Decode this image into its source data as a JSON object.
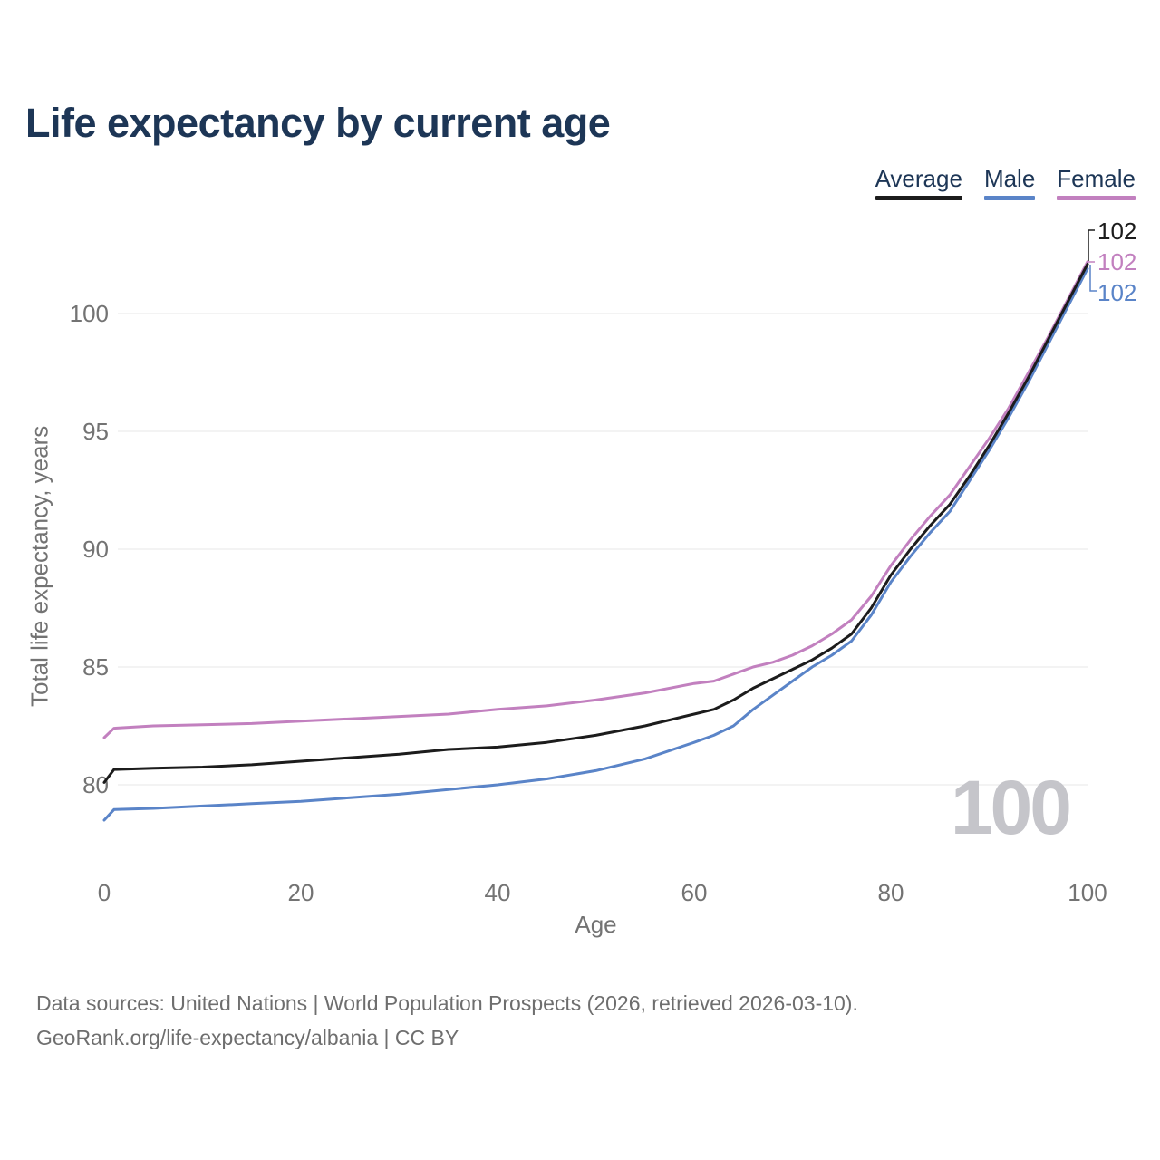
{
  "title": "Life expectancy by current age",
  "chart_data": {
    "type": "line",
    "title": "Life expectancy by current age",
    "xlabel": "Age",
    "ylabel": "Total life expectancy, years",
    "x_ticks": [
      0,
      20,
      40,
      60,
      80,
      100
    ],
    "y_ticks": [
      80,
      85,
      90,
      95,
      100
    ],
    "xlim": [
      0,
      100
    ],
    "ylim": [
      78,
      103
    ],
    "grid": "horizontal-only",
    "legend_position": "top-right",
    "ages": [
      0,
      1,
      5,
      10,
      15,
      20,
      25,
      30,
      35,
      40,
      45,
      50,
      55,
      60,
      62,
      64,
      66,
      68,
      70,
      72,
      74,
      76,
      78,
      80,
      82,
      84,
      86,
      88,
      90,
      92,
      94,
      96,
      98,
      100
    ],
    "series": [
      {
        "name": "Average",
        "color": "#1c1c1c",
        "values": [
          80.1,
          80.65,
          80.7,
          80.75,
          80.85,
          81.0,
          81.15,
          81.3,
          81.5,
          81.6,
          81.8,
          82.1,
          82.5,
          83.0,
          83.2,
          83.6,
          84.1,
          84.5,
          84.9,
          85.3,
          85.8,
          86.4,
          87.5,
          88.9,
          90.0,
          91.0,
          91.9,
          93.1,
          94.4,
          95.8,
          97.3,
          98.9,
          100.5,
          102.1
        ]
      },
      {
        "name": "Male",
        "color": "#5a84c8",
        "values": [
          78.5,
          78.95,
          79.0,
          79.1,
          79.2,
          79.3,
          79.45,
          79.6,
          79.8,
          80.0,
          80.25,
          80.6,
          81.1,
          81.8,
          82.1,
          82.5,
          83.2,
          83.8,
          84.4,
          85.0,
          85.5,
          86.1,
          87.2,
          88.6,
          89.7,
          90.7,
          91.6,
          92.9,
          94.2,
          95.6,
          97.1,
          98.7,
          100.3,
          101.9
        ]
      },
      {
        "name": "Female",
        "color": "#c280bf",
        "values": [
          82.0,
          82.4,
          82.5,
          82.55,
          82.6,
          82.7,
          82.8,
          82.9,
          83.0,
          83.2,
          83.35,
          83.6,
          83.9,
          84.3,
          84.4,
          84.7,
          85.0,
          85.2,
          85.5,
          85.9,
          86.4,
          87.0,
          88.0,
          89.3,
          90.4,
          91.4,
          92.3,
          93.5,
          94.7,
          96.0,
          97.5,
          99.0,
          100.6,
          102.2
        ]
      }
    ],
    "end_labels": [
      {
        "series": "Average",
        "text": "102"
      },
      {
        "series": "Female",
        "text": "102"
      },
      {
        "series": "Male",
        "text": "102"
      }
    ],
    "age_watermark": "100"
  },
  "footer": {
    "line1": "Data sources: United Nations | World Population Prospects (2026, retrieved 2026-03-10).",
    "line2": "GeoRank.org/life-expectancy/albania | CC BY"
  }
}
